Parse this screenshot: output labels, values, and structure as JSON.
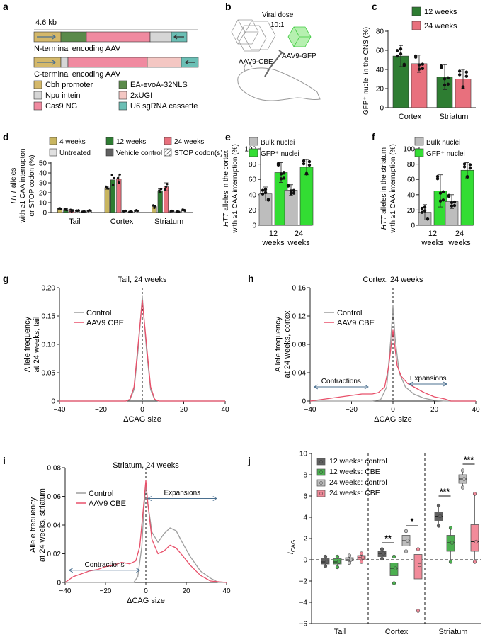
{
  "colors": {
    "olive": "#c8b560",
    "green": "#2e7d32",
    "pink": "#e8707d",
    "lime": "#33dd33",
    "grey": "#bdbdbd",
    "dgrey": "#616161",
    "lgrey": "#e0e0e0",
    "teal": "#6bbfb5",
    "lpink": "#f4c7c3",
    "cas9": "#f08aa0",
    "evo": "#5a8a4a",
    "axis": "#222222",
    "arrow": "#4a6f8f",
    "control_line": "#9e9e9e",
    "cbe_line": "#e8506a"
  },
  "panel_a": {
    "label": "a",
    "size_label": "4.6 kb",
    "n_label": "N-terminal encoding AAV",
    "c_label": "C-terminal encoding AAV",
    "legend": [
      {
        "text": "Cbh promoter",
        "color": "#d4b86a"
      },
      {
        "text": "EA-evoA-32NLS",
        "color": "#5a8a4a"
      },
      {
        "text": "Npu intein",
        "color": "#d6d6d6"
      },
      {
        "text": "2xUGI",
        "color": "#f4c7c3"
      },
      {
        "text": "Cas9 NG",
        "color": "#f08aa0"
      },
      {
        "text": "U6 sgRNA cassette",
        "color": "#6bbfb5"
      }
    ]
  },
  "panel_b": {
    "label": "b",
    "viral_dose": "Viral dose",
    "ratio": "10:1",
    "cbe_label": "AAV9-CBE",
    "gfp_label": "AAV9-GFP"
  },
  "chart_data": [
    {
      "id": "c",
      "label": "c",
      "type": "bar",
      "ylabel": "GFP⁺ nuclei in the CNS (%)",
      "ylim": [
        0,
        80
      ],
      "yticks": [
        0,
        20,
        40,
        60,
        80
      ],
      "categories": [
        "Cortex",
        "Striatum"
      ],
      "series": [
        {
          "name": "12 weeks",
          "color": "#2e7d32",
          "values": [
            54,
            32
          ],
          "err": [
            11,
            13
          ]
        },
        {
          "name": "24 weeks",
          "color": "#e8707d",
          "values": [
            46,
            30
          ],
          "err": [
            9,
            10
          ]
        }
      ]
    },
    {
      "id": "d",
      "label": "d",
      "type": "bar",
      "ylabel_italic": "HTT",
      "ylabel_line1": " alleles",
      "ylabel_line2": "with ≥1 CAA interrupton",
      "ylabel_line3": "or STOP codon (%)",
      "ylim": [
        0,
        50
      ],
      "yticks": [
        0,
        10,
        20,
        30,
        40,
        50
      ],
      "categories": [
        "Tail",
        "Cortex",
        "Striatum"
      ],
      "legend": [
        "4 weeks",
        "12 weeks",
        "24 weeks",
        "Untreated",
        "Vehicle control",
        "STOP codon(s)"
      ],
      "series": [
        {
          "name": "4 weeks",
          "color": "#c8b560",
          "values": [
            4,
            25,
            6
          ],
          "err": [
            0.5,
            1.5,
            1.5
          ]
        },
        {
          "name": "12 weeks",
          "color": "#2e7d32",
          "values": [
            3,
            33,
            22
          ],
          "err": [
            1,
            6,
            2
          ]
        },
        {
          "name": "24 weeks",
          "color": "#e8707d",
          "values": [
            2,
            34,
            26
          ],
          "err": [
            1,
            5,
            4
          ]
        },
        {
          "name": "Untreated",
          "color": "#e0e0e0",
          "values": [
            2,
            1.5,
            1.5
          ],
          "err": [
            0.4,
            0.4,
            0.4
          ]
        },
        {
          "name": "Vehicle control",
          "color": "#616161",
          "values": [
            1,
            1,
            1
          ],
          "err": [
            0.3,
            0.3,
            0.3
          ]
        },
        {
          "name": "STOP codon(s)",
          "color": "#ffffff",
          "values": [
            2,
            2,
            2.5
          ],
          "err": [
            0.5,
            0.5,
            0.8
          ]
        }
      ]
    },
    {
      "id": "e",
      "label": "e",
      "type": "bar",
      "ylabel_italic": "HTT",
      "ylabel_line1": " alleles in the cortex",
      "ylabel_line2": "with ≥1 CAA interruption (%)",
      "ylim": [
        0,
        100
      ],
      "yticks": [
        0,
        20,
        40,
        60,
        80,
        100
      ],
      "categories": [
        "12 weeks",
        "24 weeks"
      ],
      "series": [
        {
          "name": "Bulk nuclei",
          "color": "#bdbdbd",
          "values": [
            41,
            46
          ],
          "err": [
            9,
            7
          ]
        },
        {
          "name": "GFP⁺ nuclei",
          "color": "#33dd33",
          "values": [
            69,
            76
          ],
          "err": [
            13,
            10
          ]
        }
      ]
    },
    {
      "id": "f",
      "label": "f",
      "type": "bar",
      "ylabel_italic": "HTT",
      "ylabel_line1": " alleles in the striatum",
      "ylabel_line2": "with ≥1 CAA interruption (%)",
      "ylim": [
        0,
        100
      ],
      "yticks": [
        0,
        20,
        40,
        60,
        80,
        100
      ],
      "categories": [
        "12 weeks",
        "24 weeks"
      ],
      "series": [
        {
          "name": "Bulk nuclei",
          "color": "#bdbdbd",
          "values": [
            17,
            31
          ],
          "err": [
            10,
            9
          ]
        },
        {
          "name": "GFP⁺ nuclei",
          "color": "#33dd33",
          "values": [
            45,
            72
          ],
          "err": [
            21,
            10
          ]
        }
      ]
    },
    {
      "id": "g",
      "label": "g",
      "type": "line",
      "title": "Tail, 24 weeks",
      "ylabel": "Allele frequency",
      "ylabel2": "at 24 weeks, tail",
      "xlabel": "ΔCAG size",
      "xlim": [
        -40,
        40
      ],
      "ylim": [
        0,
        0.2
      ],
      "xticks": [
        -40,
        -20,
        0,
        20,
        40
      ],
      "yticks": [
        0,
        0.05,
        0.1,
        0.15,
        0.2
      ],
      "ytick_labels": [
        "0",
        "0.05",
        "0.10",
        "0.15",
        "0.20"
      ],
      "series": [
        {
          "name": "Control",
          "color": "#9e9e9e",
          "x": [
            -40,
            -8,
            -6,
            -4,
            -2,
            0,
            2,
            4,
            6,
            8,
            40
          ],
          "y": [
            0,
            0,
            0.002,
            0.02,
            0.09,
            0.185,
            0.09,
            0.02,
            0.002,
            0,
            0
          ]
        },
        {
          "name": "AAV9 CBE",
          "color": "#e8506a",
          "x": [
            -40,
            -8,
            -6,
            -4,
            -2,
            0,
            2,
            4,
            6,
            8,
            40
          ],
          "y": [
            0,
            0,
            0.003,
            0.025,
            0.1,
            0.178,
            0.1,
            0.025,
            0.003,
            0,
            0
          ]
        }
      ]
    },
    {
      "id": "h",
      "label": "h",
      "type": "line",
      "title": "Cortex, 24 weeks",
      "ylabel": "Allele frequency",
      "ylabel2": "at 24 weeks, cortex",
      "xlabel": "ΔCAG size",
      "xlim": [
        -40,
        40
      ],
      "ylim": [
        0,
        0.16
      ],
      "xticks": [
        -40,
        -20,
        0,
        20,
        40
      ],
      "yticks": [
        0,
        0.04,
        0.08,
        0.12,
        0.16
      ],
      "ytick_labels": [
        "0",
        "0.04",
        "0.08",
        "0.12",
        "0.16"
      ],
      "annotations": [
        "Contractions",
        "Expansions"
      ],
      "series": [
        {
          "name": "Control",
          "color": "#9e9e9e",
          "x": [
            -40,
            -10,
            -6,
            -3,
            -1,
            0,
            1,
            3,
            6,
            10,
            15,
            20,
            25,
            40
          ],
          "y": [
            0,
            0,
            0.002,
            0.02,
            0.09,
            0.135,
            0.09,
            0.04,
            0.02,
            0.01,
            0.004,
            0.001,
            0,
            0
          ]
        },
        {
          "name": "AAV9 CBE",
          "color": "#e8506a",
          "x": [
            -40,
            -35,
            -30,
            -25,
            -20,
            -15,
            -10,
            -7,
            -4,
            -2,
            0,
            2,
            4,
            7,
            10,
            15,
            20,
            25,
            28,
            40
          ],
          "y": [
            0,
            0.002,
            0.004,
            0.006,
            0.008,
            0.01,
            0.01,
            0.012,
            0.02,
            0.05,
            0.1,
            0.05,
            0.035,
            0.025,
            0.02,
            0.012,
            0.006,
            0.003,
            0,
            0
          ]
        }
      ]
    },
    {
      "id": "i",
      "label": "i",
      "type": "line",
      "title": "Striatum, 24 weeks",
      "ylabel": "Allele frequency",
      "ylabel2": "at 24 weeks, striatum",
      "xlabel": "ΔCAG size",
      "xlim": [
        -40,
        40
      ],
      "ylim": [
        0,
        0.08
      ],
      "xticks": [
        -40,
        -20,
        0,
        20,
        40
      ],
      "yticks": [
        0,
        0.02,
        0.04,
        0.06,
        0.08
      ],
      "ytick_labels": [
        "0",
        "0.02",
        "0.04",
        "0.06",
        "0.08"
      ],
      "annotations": [
        "Contractions",
        "Expansions"
      ],
      "series": [
        {
          "name": "Control",
          "color": "#9e9e9e",
          "x": [
            -40,
            -6,
            -4,
            -2,
            -1,
            0,
            1,
            3,
            6,
            9,
            12,
            15,
            18,
            22,
            27,
            32,
            36,
            40
          ],
          "y": [
            0,
            0,
            0.004,
            0.025,
            0.05,
            0.068,
            0.055,
            0.035,
            0.028,
            0.034,
            0.038,
            0.036,
            0.028,
            0.018,
            0.008,
            0.003,
            0,
            0
          ]
        },
        {
          "name": "AAV9 CBE",
          "color": "#e8506a",
          "x": [
            -40,
            -36,
            -32,
            -28,
            -24,
            -20,
            -16,
            -12,
            -8,
            -5,
            -3,
            -1,
            0,
            1,
            3,
            6,
            9,
            12,
            15,
            18,
            22,
            27,
            32,
            40
          ],
          "y": [
            0,
            0.004,
            0.006,
            0.008,
            0.009,
            0.011,
            0.012,
            0.014,
            0.013,
            0.015,
            0.025,
            0.055,
            0.071,
            0.055,
            0.03,
            0.02,
            0.022,
            0.026,
            0.024,
            0.019,
            0.012,
            0.005,
            0.001,
            0
          ]
        }
      ]
    },
    {
      "id": "j",
      "label": "j",
      "type": "box",
      "ylabel": "I",
      "ylabel_sub": "CAG",
      "ylim": [
        -6,
        10
      ],
      "yticks": [
        -6,
        -4,
        -2,
        0,
        2,
        4,
        6,
        8,
        10
      ],
      "categories": [
        "Tail",
        "Cortex",
        "Striatum"
      ],
      "legend": [
        "12 weeks: control",
        "12 weeks: CBE",
        "24 weeks: control",
        "24 weeks: CBE"
      ],
      "significance": [
        "**",
        "*",
        "***",
        "***"
      ],
      "groups": [
        {
          "category": "Tail",
          "series": "12 weeks: control",
          "color": "#616161",
          "min": -0.6,
          "q1": -0.4,
          "median": -0.2,
          "q3": 0.1,
          "max": 0.3
        },
        {
          "category": "Tail",
          "series": "12 weeks: CBE",
          "color": "#4caf50",
          "min": -0.7,
          "q1": -0.4,
          "median": -0.2,
          "q3": 0.1,
          "max": 0.3
        },
        {
          "category": "Tail",
          "series": "24 weeks: control",
          "color": "#bdbdbd",
          "min": -0.3,
          "q1": -0.1,
          "median": 0.0,
          "q3": 0.2,
          "max": 0.4
        },
        {
          "category": "Tail",
          "series": "24 weeks: CBE",
          "color": "#f28b9a",
          "min": -0.2,
          "q1": 0.0,
          "median": 0.2,
          "q3": 0.4,
          "max": 0.6
        },
        {
          "category": "Cortex",
          "series": "12 weeks: control",
          "color": "#616161",
          "min": 0.1,
          "q1": 0.3,
          "median": 0.6,
          "q3": 0.8,
          "max": 1.0
        },
        {
          "category": "Cortex",
          "series": "12 weeks: CBE",
          "color": "#4caf50",
          "min": -2.2,
          "q1": -1.5,
          "median": -0.8,
          "q3": -0.3,
          "max": 0.3
        },
        {
          "category": "Cortex",
          "series": "24 weeks: control",
          "color": "#bdbdbd",
          "min": 0.8,
          "q1": 1.3,
          "median": 1.8,
          "q3": 2.3,
          "max": 2.7
        },
        {
          "category": "Cortex",
          "series": "24 weeks: CBE",
          "color": "#f28b9a",
          "min": -4.8,
          "q1": -1.8,
          "median": -0.5,
          "q3": 0.5,
          "max": 1.0
        },
        {
          "category": "Striatum",
          "series": "12 weeks: control",
          "color": "#616161",
          "min": 3.2,
          "q1": 3.7,
          "median": 4.1,
          "q3": 4.5,
          "max": 5.1
        },
        {
          "category": "Striatum",
          "series": "12 weeks: CBE",
          "color": "#4caf50",
          "min": -0.2,
          "q1": 0.8,
          "median": 1.6,
          "q3": 2.3,
          "max": 3.0
        },
        {
          "category": "Striatum",
          "series": "24 weeks: control",
          "color": "#bdbdbd",
          "min": 6.8,
          "q1": 7.2,
          "median": 7.6,
          "q3": 8.0,
          "max": 8.4
        },
        {
          "category": "Striatum",
          "series": "24 weeks: CBE",
          "color": "#f28b9a",
          "min": -0.2,
          "q1": 0.8,
          "median": 1.7,
          "q3": 3.3,
          "max": 6.2
        }
      ]
    }
  ]
}
